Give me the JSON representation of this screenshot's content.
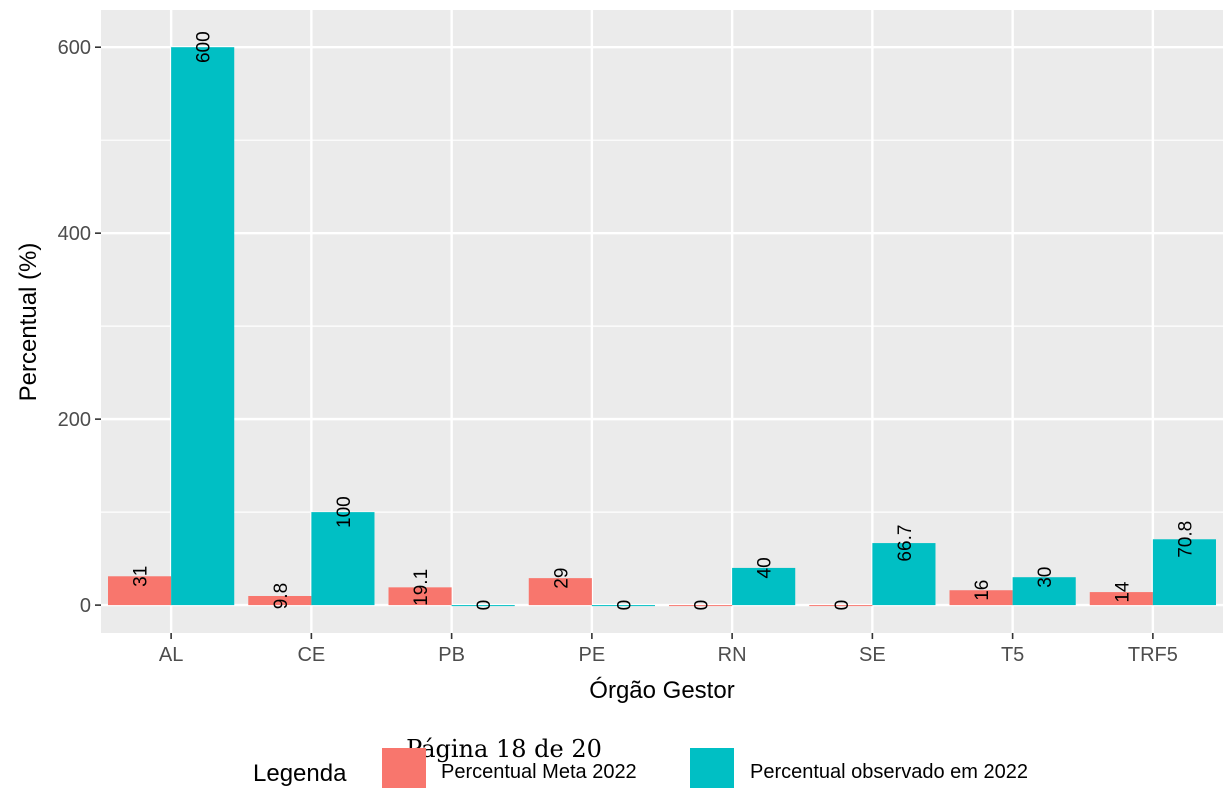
{
  "chart_data": {
    "type": "bar",
    "categories": [
      "AL",
      "CE",
      "PB",
      "PE",
      "RN",
      "SE",
      "T5",
      "TRF5"
    ],
    "series": [
      {
        "name": "Percentual Meta 2022",
        "values": [
          31,
          9.8,
          19.1,
          29,
          0,
          0,
          16,
          14
        ],
        "labels": [
          "31",
          "9.8",
          "19.1",
          "29",
          "0",
          "0",
          "16",
          "14"
        ],
        "color": "#F8766D"
      },
      {
        "name": "Percentual observado em 2022",
        "values": [
          600,
          100,
          0,
          0,
          40,
          66.7,
          30,
          70.8
        ],
        "labels": [
          "600",
          "100",
          "0",
          "0",
          "40",
          "66.7",
          "30",
          "70.8"
        ],
        "color": "#00BFC4"
      }
    ],
    "xlabel": "Órgão Gestor",
    "ylabel": "Percentual (%)",
    "yticks": [
      0,
      200,
      400,
      600
    ],
    "ylim": [
      -30,
      640
    ],
    "grid": true,
    "legend": {
      "title": "Legenda",
      "position": "bottom"
    },
    "panel_background": "#EBEBEB",
    "grid_color": "#FFFFFF"
  },
  "footer": {
    "page_text": "Página 18 de 20"
  }
}
